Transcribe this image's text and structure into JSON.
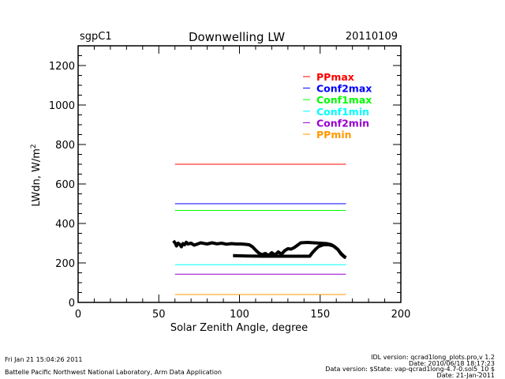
{
  "header": {
    "site": "sgpC1",
    "title": "Downwelling LW",
    "date": "20110109"
  },
  "footer": {
    "left_line1": "Fri Jan 21 15:04:26 2011",
    "left_line2": "Battelle Pacific Northwest National Laboratory, Arm Data Application",
    "right_line1": "IDL version: qcrad1long_plots.pro,v 1.2",
    "right_line2": "Date: 2010/06/18 18:17:23",
    "right_line3": "Data version: $State: vap-qcrad1long-4.7-0.sol5_10 $",
    "right_line4": "Date: 21-Jan-2011"
  },
  "chart_data": {
    "type": "line",
    "title": "Downwelling LW",
    "xlabel": "Solar Zenith Angle, degree",
    "ylabel": "LWdn, W/m",
    "ylabel_superscript": "2",
    "xlim": [
      0,
      200
    ],
    "ylim": [
      0,
      1300
    ],
    "xticks": [
      0,
      50,
      100,
      150,
      200
    ],
    "yticks": [
      0,
      200,
      400,
      600,
      800,
      1000,
      1200
    ],
    "xtick_labels": [
      "0",
      "50",
      "100",
      "150",
      "200"
    ],
    "ytick_labels": [
      "0",
      "200",
      "400",
      "600",
      "800",
      "1000",
      "1200"
    ],
    "x_minor_step": 10,
    "y_minor_step": 50,
    "grid": false,
    "legend_placement": "top-right",
    "limits": [
      {
        "name": "PPmax",
        "value": 700,
        "color": "#ff0000",
        "x": [
          60,
          166
        ]
      },
      {
        "name": "Conf2max",
        "value": 500,
        "color": "#0000ff",
        "x": [
          60,
          166
        ]
      },
      {
        "name": "Conf1max",
        "value": 466,
        "color": "#00ff00",
        "x": [
          60,
          166
        ]
      },
      {
        "name": "Conf1min",
        "value": 191,
        "color": "#00ffff",
        "x": [
          60,
          166
        ]
      },
      {
        "name": "Conf2min",
        "value": 143,
        "color": "#9900cc",
        "x": [
          60,
          166
        ]
      },
      {
        "name": "PPmin",
        "value": 40,
        "color": "#ff9900",
        "x": [
          60,
          166
        ]
      }
    ],
    "series": [
      {
        "color": "#000000",
        "segments": [
          {
            "x": [
              166,
              165,
              163,
              161,
              158,
              155,
              152,
              149,
              147,
              145,
              143.5,
              135,
              125,
              115,
              105,
              96
            ],
            "y": [
              226,
              230,
              245,
              268,
              287,
              293,
              292,
              283,
              268,
              250,
              234,
              234,
              234,
              234,
              235,
              237
            ]
          },
          {
            "x": [
              59,
              60,
              61,
              62,
              63,
              64,
              65,
              66,
              67,
              68,
              70,
              72,
              74,
              76,
              78,
              80,
              83,
              86,
              89,
              92,
              95,
              98,
              101,
              104,
              106,
              108,
              110,
              112,
              114,
              116,
              118,
              120,
              122,
              124,
              126,
              128,
              130,
              132,
              134,
              136,
              138,
              142,
              146,
              150,
              154,
              157,
              159,
              161,
              163,
              165,
              166
            ],
            "y": [
              312,
              303,
              286,
              300,
              294,
              282,
              298,
              292,
              305,
              296,
              300,
              290,
              296,
              302,
              299,
              296,
              302,
              297,
              300,
              295,
              298,
              296,
              296,
              294,
              292,
              282,
              265,
              250,
              242,
              248,
              238,
              252,
              240,
              256,
              244,
              262,
              272,
              270,
              278,
              290,
              302,
              304,
              302,
              300,
              298,
              292,
              282,
              268,
              248,
              232,
              228
            ]
          }
        ]
      }
    ]
  }
}
